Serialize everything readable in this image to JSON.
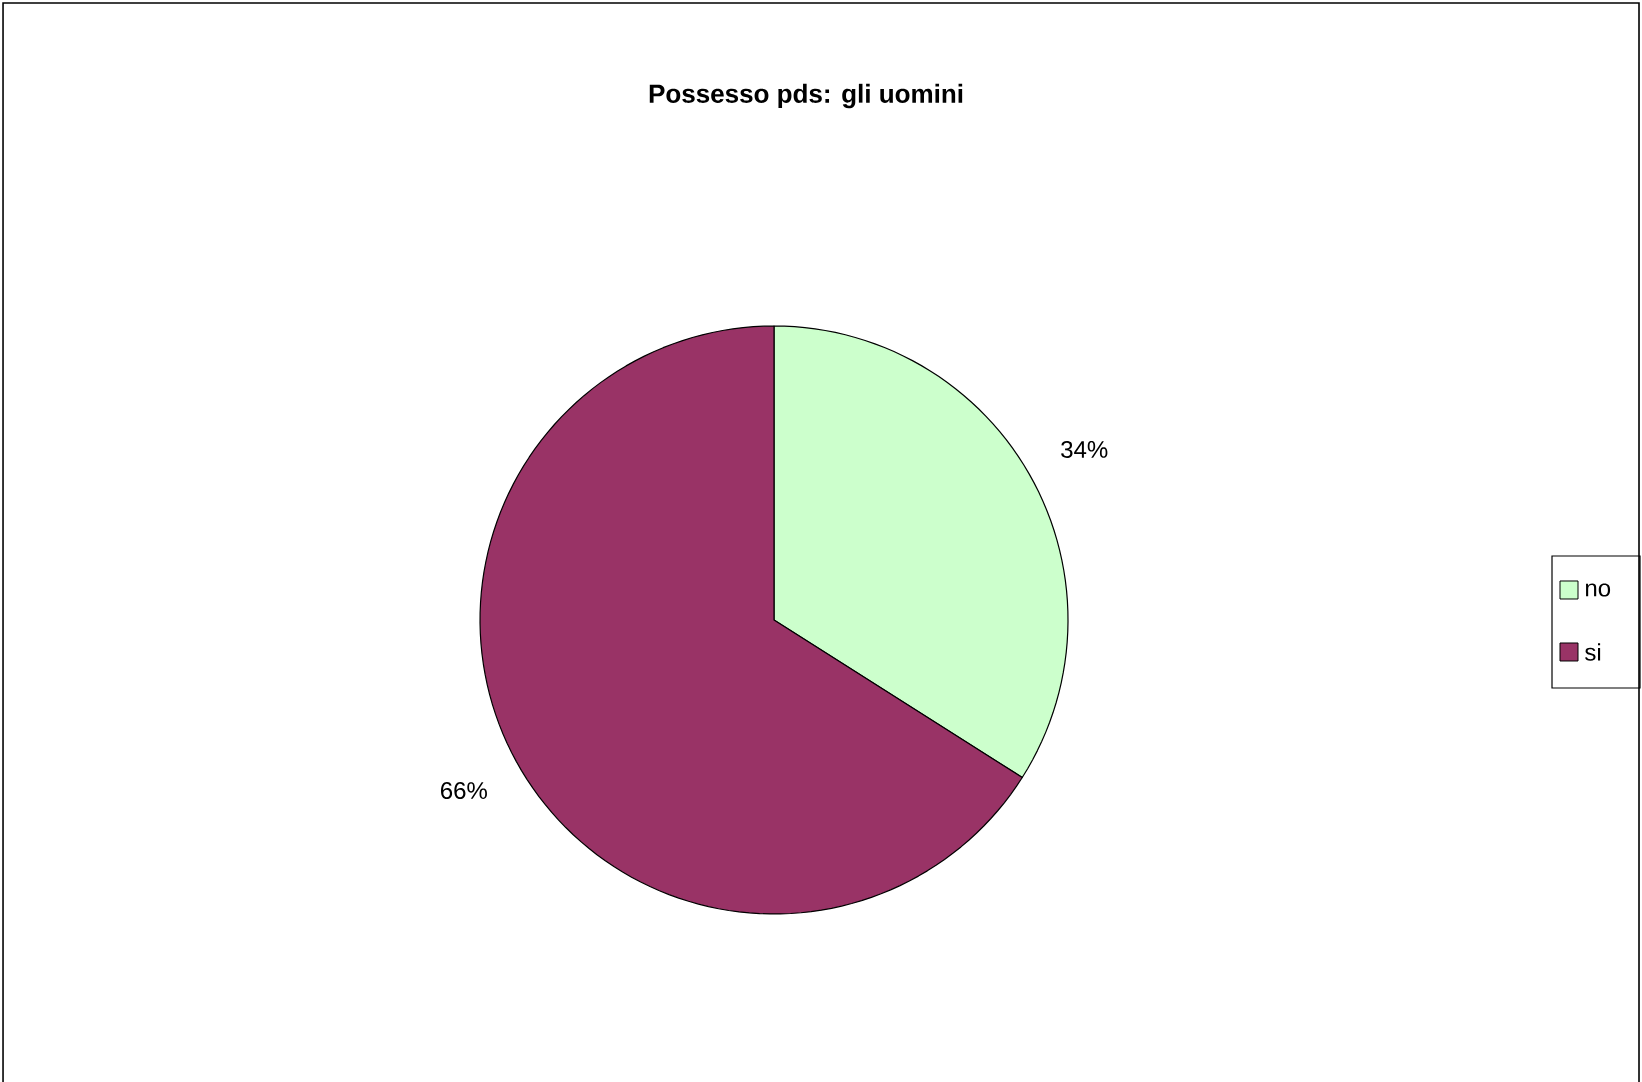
{
  "chart_data": {
    "type": "pie",
    "title": "Possesso pds: gli uomini",
    "categories": [
      "no",
      "si"
    ],
    "values": [
      34,
      66
    ],
    "colors": [
      "#ccffcc",
      "#993366"
    ],
    "value_labels": [
      "34%",
      "66%"
    ],
    "legend": "right"
  }
}
